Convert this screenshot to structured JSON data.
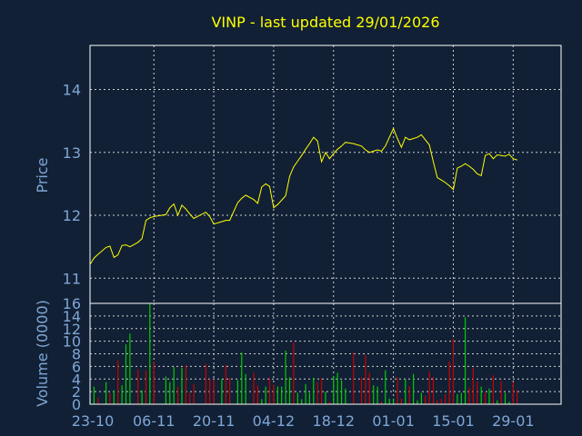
{
  "colors": {
    "background": "#112035",
    "axis_text": "#7fa6d6",
    "title": "#ffff00",
    "grid": "#d0d0d0",
    "frame": "#ffffff",
    "price_line": "#ffff00",
    "volume_up": "#00cc00",
    "volume_down": "#cc0000"
  },
  "chart_data": [
    {
      "type": "line",
      "title": "VINP - last updated 29/01/2026",
      "ylabel": "Price",
      "ylim": [
        10.6,
        14.7
      ],
      "yticks": [
        11,
        12,
        13,
        14
      ],
      "xlim": [
        0,
        118
      ],
      "xticks": [
        {
          "x": 0,
          "label": "23-10"
        },
        {
          "x": 16,
          "label": "06-11"
        },
        {
          "x": 31,
          "label": "20-11"
        },
        {
          "x": 46,
          "label": "04-12"
        },
        {
          "x": 61,
          "label": "18-12"
        },
        {
          "x": 76,
          "label": "01-01"
        },
        {
          "x": 91,
          "label": "15-01"
        },
        {
          "x": 106,
          "label": "29-01"
        }
      ],
      "grid": true,
      "series": [
        {
          "x": [
            0,
            1,
            2,
            4,
            5,
            6,
            7,
            8,
            9,
            10,
            12,
            13,
            14,
            15,
            16,
            19,
            20,
            21,
            22,
            23,
            24,
            25,
            26,
            29,
            30,
            31,
            33,
            34,
            35,
            37,
            38,
            39,
            41,
            42,
            43,
            44,
            45,
            46,
            47,
            48,
            49,
            50,
            51,
            52,
            53,
            54,
            55,
            56,
            57,
            58,
            59,
            60,
            61,
            62,
            63,
            64,
            66,
            68,
            69,
            70,
            71,
            72,
            73,
            74,
            75,
            76,
            77,
            78,
            79,
            80,
            81,
            82,
            83,
            84,
            85,
            86,
            87,
            88,
            89,
            90,
            91,
            92,
            93,
            94,
            95,
            96,
            97,
            98,
            99,
            100,
            101,
            102,
            103,
            104,
            105,
            106,
            107
          ],
          "y": [
            11.22,
            11.32,
            11.38,
            11.49,
            11.51,
            11.33,
            11.37,
            11.52,
            11.53,
            11.5,
            11.57,
            11.63,
            11.92,
            11.96,
            11.98,
            12.01,
            12.12,
            12.18,
            12.0,
            12.16,
            12.1,
            12.02,
            11.95,
            12.05,
            11.98,
            11.86,
            11.9,
            11.92,
            11.92,
            12.2,
            12.27,
            12.32,
            12.25,
            12.19,
            12.45,
            12.5,
            12.46,
            12.12,
            12.17,
            12.24,
            12.31,
            12.62,
            12.77,
            12.86,
            12.95,
            13.05,
            13.14,
            13.24,
            13.18,
            12.85,
            13.0,
            12.9,
            12.98,
            13.05,
            13.1,
            13.16,
            13.14,
            13.1,
            13.04,
            13.0,
            13.02,
            13.04,
            13.02,
            13.1,
            13.24,
            13.38,
            13.22,
            13.08,
            13.24,
            13.2,
            13.22,
            13.24,
            13.28,
            13.2,
            13.12,
            12.85,
            12.6,
            12.56,
            12.52,
            12.47,
            12.41,
            12.75,
            12.78,
            12.82,
            12.78,
            12.73,
            12.66,
            12.63,
            12.95,
            12.98,
            12.9,
            12.96,
            12.95,
            12.94,
            12.97,
            12.9,
            12.88
          ]
        }
      ]
    },
    {
      "type": "bar",
      "ylabel": "Volume (0000)",
      "ylim": [
        0,
        16
      ],
      "yticks": [
        0,
        2,
        4,
        6,
        8,
        10,
        12,
        14,
        16
      ],
      "xlim": [
        0,
        118
      ],
      "xticks": [
        {
          "x": 0,
          "label": "23-10"
        },
        {
          "x": 16,
          "label": "06-11"
        },
        {
          "x": 31,
          "label": "20-11"
        },
        {
          "x": 46,
          "label": "04-12"
        },
        {
          "x": 61,
          "label": "18-12"
        },
        {
          "x": 76,
          "label": "01-01"
        },
        {
          "x": 91,
          "label": "15-01"
        },
        {
          "x": 106,
          "label": "29-01"
        }
      ],
      "grid": true,
      "series": [
        {
          "name": "",
          "x": [
            0,
            1,
            2,
            4,
            5,
            6,
            7,
            8,
            9,
            10,
            12,
            13,
            14,
            15,
            16,
            19,
            20,
            21,
            22,
            23,
            24,
            25,
            26,
            29,
            30,
            31,
            33,
            34,
            35,
            37,
            38,
            39,
            41,
            42,
            43,
            44,
            45,
            46,
            47,
            48,
            49,
            50,
            51,
            52,
            53,
            54,
            55,
            56,
            57,
            58,
            59,
            60,
            61,
            62,
            63,
            64,
            66,
            68,
            69,
            70,
            71,
            72,
            73,
            74,
            75,
            76,
            77,
            78,
            79,
            80,
            81,
            82,
            83,
            84,
            85,
            86,
            87,
            88,
            89,
            90,
            91,
            92,
            93,
            94,
            95,
            96,
            97,
            98,
            99,
            100,
            101,
            102,
            103,
            104,
            105,
            106,
            107
          ],
          "values": [
            0.5,
            2.8,
            1.0,
            3.5,
            1.8,
            2.2,
            7.0,
            3.0,
            9.5,
            11.2,
            5.5,
            2.2,
            5.4,
            16.0,
            6.8,
            4.4,
            3.5,
            5.9,
            2.8,
            5.8,
            6.2,
            1.8,
            3.2,
            6.4,
            4.0,
            3.8,
            4.0,
            6.2,
            4.2,
            3.8,
            8.2,
            4.8,
            5.0,
            3.0,
            0.8,
            2.8,
            4.2,
            3.1,
            2.8,
            2.8,
            8.5,
            4.3,
            9.8,
            1.8,
            0.8,
            3.2,
            1.8,
            4.2,
            3.5,
            4.2,
            2.0,
            0.4,
            4.5,
            5.0,
            3.8,
            2.5,
            8.2,
            4.2,
            7.8,
            5.0,
            3.0,
            2.8,
            0.4,
            5.4,
            0.9,
            0.8,
            4.3,
            0.9,
            4.0,
            2.9,
            4.8,
            0.6,
            1.8,
            1.3,
            5.2,
            4.3,
            0.6,
            0.8,
            1.6,
            6.8,
            10.4,
            1.6,
            1.8,
            13.8,
            2.6,
            5.8,
            3.6,
            2.8,
            1.8,
            2.5,
            4.6,
            0.6,
            3.7,
            1.8,
            0.4,
            3.5,
            2.2
          ],
          "direction": [
            "up",
            "up",
            "down",
            "up",
            "down",
            "up",
            "down",
            "up",
            "up",
            "up",
            "down",
            "up",
            "down",
            "up",
            "down",
            "up",
            "up",
            "up",
            "down",
            "up",
            "down",
            "down",
            "down",
            "down",
            "down",
            "down",
            "up",
            "down",
            "down",
            "up",
            "up",
            "up",
            "down",
            "down",
            "up",
            "up",
            "down",
            "down",
            "up",
            "up",
            "up",
            "up",
            "down",
            "up",
            "up",
            "up",
            "up",
            "up",
            "down",
            "down",
            "up",
            "down",
            "up",
            "up",
            "up",
            "up",
            "down",
            "down",
            "down",
            "down",
            "up",
            "up",
            "down",
            "up",
            "up",
            "up",
            "down",
            "down",
            "up",
            "down",
            "up",
            "up",
            "up",
            "down",
            "down",
            "down",
            "down",
            "down",
            "down",
            "down",
            "down",
            "up",
            "up",
            "up",
            "down",
            "down",
            "down",
            "up",
            "down",
            "up",
            "down",
            "up",
            "down",
            "up",
            "up",
            "down",
            "down"
          ]
        }
      ]
    }
  ]
}
